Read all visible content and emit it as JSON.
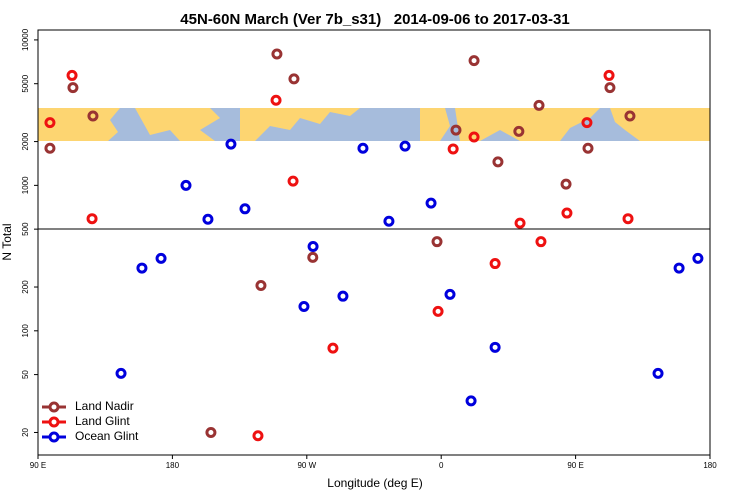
{
  "chart_data": {
    "type": "scatter",
    "title": "45N-60N March (Ver 7b_s31)   2014-09-06 to 2017-03-31",
    "x_label": "Longitude (deg E)",
    "y_label": "N Total",
    "log_y": true,
    "xlim": [
      90,
      540
    ],
    "ylim": [
      14,
      11700
    ],
    "xticks": [
      {
        "value": 90,
        "label": "90 E"
      },
      180,
      {
        "value": 270,
        "label": "90 W"
      },
      {
        "value": 360,
        "label": "0"
      },
      {
        "value": 450,
        "label": "90 E"
      },
      {
        "value": 540,
        "label": "180"
      }
    ],
    "yticks": [
      20,
      50,
      100,
      200,
      500,
      1000,
      2000,
      5000,
      10000
    ],
    "legend": "lower left",
    "series": [
      {
        "name": "Land Nadir",
        "color": "#993333",
        "x": [
          98,
          113.4,
          126.8,
          250,
          261.4,
          239.3,
          274,
          205.8,
          357.2,
          382,
          369.9,
          398,
          412,
          425.5,
          443.6,
          458.3,
          473,
          486.4
        ],
        "values": [
          1800,
          4700,
          3000,
          8000,
          5400,
          205,
          320,
          20,
          410,
          7200,
          2400,
          1450,
          2350,
          3550,
          1020,
          1800,
          4700,
          3000
        ]
      },
      {
        "name": "Land Glint",
        "color": "#ee1111",
        "x": [
          98,
          112.8,
          126.2,
          249.4,
          260.8,
          287.5,
          237.3,
          357.9,
          368,
          382,
          396.1,
          412.8,
          426.8,
          444.2,
          457.6,
          472.4,
          485.1
        ],
        "values": [
          2700,
          5700,
          590,
          3850,
          1070,
          76,
          19,
          136,
          1780,
          2150,
          290,
          550,
          410,
          645,
          2700,
          5700,
          590
        ]
      },
      {
        "name": "Ocean Glint",
        "color": "#0000dd",
        "x": [
          145.6,
          159.6,
          172.4,
          189.1,
          203.8,
          219.2,
          228.6,
          268.1,
          274.2,
          294.2,
          307.6,
          325,
          335.8,
          353.2,
          365.9,
          380,
          396.1,
          505.2,
          519.3,
          531.9
        ],
        "values": [
          51,
          270,
          315,
          1000,
          585,
          1920,
          690,
          147,
          380,
          173,
          1800,
          567,
          1860,
          755,
          178,
          33,
          77,
          51,
          270,
          315
        ]
      }
    ]
  }
}
